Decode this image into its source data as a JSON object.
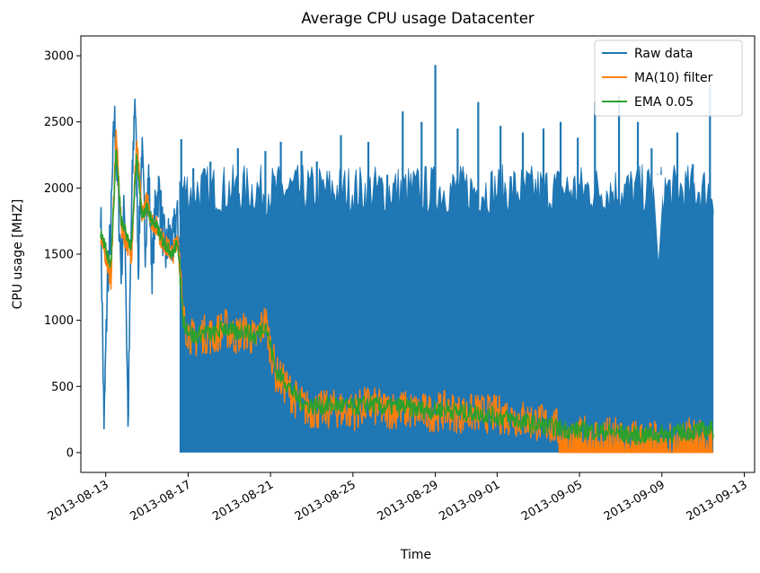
{
  "chart_data": {
    "type": "line",
    "title": "Average CPU usage Datacenter",
    "xlabel": "Time",
    "ylabel": "CPU usage [MHZ]",
    "xlim": [
      "2013-08-11T19:00",
      "2013-09-13T12:00"
    ],
    "ylim": [
      -150,
      3150
    ],
    "x_ticks": [
      "2013-08-13",
      "2013-08-17",
      "2013-08-21",
      "2013-08-25",
      "2013-08-29",
      "2013-09-01",
      "2013-09-05",
      "2013-09-09",
      "2013-09-13"
    ],
    "y_ticks": [
      0,
      500,
      1000,
      1500,
      2000,
      2500,
      3000
    ],
    "legend_position": "top-right",
    "grid": false,
    "series": [
      {
        "name": "Raw data",
        "color": "#1f77b4",
        "x": [
          "2013-08-12T18:00",
          "2013-08-12T22:00",
          "2013-08-13T02:00",
          "2013-08-13T06:00",
          "2013-08-13T10:00",
          "2013-08-13T14:00",
          "2013-08-13T18:00",
          "2013-08-13T22:00",
          "2013-08-14T02:00",
          "2013-08-14T06:00",
          "2013-08-14T10:00",
          "2013-08-14T14:00",
          "2013-08-14T18:00",
          "2013-08-14T22:00",
          "2013-08-15T02:00",
          "2013-08-15T06:00",
          "2013-08-15T10:00",
          "2013-08-15T14:00",
          "2013-08-15T18:00",
          "2013-08-15T22:00",
          "2013-08-16T02:00",
          "2013-08-16T06:00",
          "2013-08-16T10:00",
          "2013-08-16T14:00"
        ],
        "values": [
          1900,
          180,
          1300,
          1700,
          2550,
          2000,
          1400,
          1900,
          200,
          1800,
          2740,
          1450,
          2300,
          1600,
          2100,
          1400,
          1850,
          2000,
          1700,
          1500,
          1650,
          1550,
          1800,
          1600
        ],
        "band": {
          "start": "2013-08-16T14:00",
          "end": "2013-09-11T12:00",
          "min": 0,
          "typical_max": 1800,
          "peaks": [
            {
              "x": "2013-08-16T16:00",
              "value": 2370
            },
            {
              "x": "2013-08-17T06:00",
              "value": 2150
            },
            {
              "x": "2013-08-18T02:00",
              "value": 2200
            },
            {
              "x": "2013-08-19T10:00",
              "value": 2300
            },
            {
              "x": "2013-08-20T18:00",
              "value": 2280
            },
            {
              "x": "2013-08-21T12:00",
              "value": 2350
            },
            {
              "x": "2013-08-22T12:00",
              "value": 2280
            },
            {
              "x": "2013-08-23T06:00",
              "value": 2200
            },
            {
              "x": "2013-08-24T10:00",
              "value": 2400
            },
            {
              "x": "2013-08-25T18:00",
              "value": 2350
            },
            {
              "x": "2013-08-26T16:00",
              "value": 2100
            },
            {
              "x": "2013-08-27T10:00",
              "value": 2580
            },
            {
              "x": "2013-08-28T08:00",
              "value": 2500
            },
            {
              "x": "2013-08-29T00:00",
              "value": 2930
            },
            {
              "x": "2013-08-30T02:00",
              "value": 2450
            },
            {
              "x": "2013-08-31T02:00",
              "value": 2650
            },
            {
              "x": "2013-09-01T04:00",
              "value": 2470
            },
            {
              "x": "2013-09-02T06:00",
              "value": 2420
            },
            {
              "x": "2013-09-03T06:00",
              "value": 2450
            },
            {
              "x": "2013-09-04T02:00",
              "value": 2500
            },
            {
              "x": "2013-09-04T22:00",
              "value": 2380
            },
            {
              "x": "2013-09-05T18:00",
              "value": 2650
            },
            {
              "x": "2013-09-06T22:00",
              "value": 2700
            },
            {
              "x": "2013-09-07T20:00",
              "value": 2500
            },
            {
              "x": "2013-09-08T12:00",
              "value": 2300
            },
            {
              "x": "2013-09-09T18:00",
              "value": 2420
            },
            {
              "x": "2013-09-10T12:00",
              "value": 2180
            },
            {
              "x": "2013-09-11T08:00",
              "value": 2780
            }
          ],
          "dips": [
            {
              "x": "2013-09-08T20:00",
              "value": 1450
            }
          ]
        }
      },
      {
        "name": "MA(10) filter",
        "color": "#ff7f0e",
        "x": [
          "2013-08-12T18:00",
          "2013-08-13T00:00",
          "2013-08-13T06:00",
          "2013-08-13T12:00",
          "2013-08-13T18:00",
          "2013-08-14T00:00",
          "2013-08-14T06:00",
          "2013-08-14T12:00",
          "2013-08-14T18:00",
          "2013-08-15T00:00",
          "2013-08-15T06:00",
          "2013-08-15T12:00",
          "2013-08-15T18:00",
          "2013-08-16T00:00",
          "2013-08-16T06:00",
          "2013-08-16T12:00",
          "2013-08-16T18:00",
          "2013-08-17T06:00",
          "2013-08-17T18:00",
          "2013-08-18T06:00",
          "2013-08-18T18:00",
          "2013-08-19T06:00",
          "2013-08-19T18:00",
          "2013-08-20T06:00",
          "2013-08-20T18:00",
          "2013-08-21T06:00",
          "2013-08-21T18:00",
          "2013-08-22T06:00",
          "2013-08-22T18:00",
          "2013-08-23T12:00",
          "2013-08-24T06:00",
          "2013-08-25T00:00",
          "2013-08-25T18:00",
          "2013-08-26T12:00",
          "2013-08-27T06:00",
          "2013-08-28T00:00",
          "2013-08-28T18:00",
          "2013-08-29T12:00",
          "2013-08-30T06:00",
          "2013-08-31T00:00",
          "2013-08-31T18:00",
          "2013-09-01T12:00",
          "2013-09-02T06:00",
          "2013-09-03T00:00",
          "2013-09-03T18:00",
          "2013-09-04T12:00",
          "2013-09-05T06:00",
          "2013-09-06T00:00",
          "2013-09-06T18:00",
          "2013-09-07T12:00",
          "2013-09-08T06:00",
          "2013-09-09T00:00",
          "2013-09-09T18:00",
          "2013-09-10T12:00",
          "2013-09-11T06:00"
        ],
        "values": [
          1600,
          1500,
          1300,
          2400,
          1700,
          1600,
          1500,
          2350,
          1800,
          1900,
          1750,
          1700,
          1600,
          1550,
          1500,
          1650,
          1000,
          850,
          900,
          880,
          950,
          880,
          920,
          850,
          1000,
          600,
          500,
          400,
          330,
          320,
          330,
          310,
          360,
          320,
          330,
          310,
          300,
          320,
          290,
          300,
          290,
          280,
          250,
          230,
          200,
          120,
          130,
          130,
          120,
          110,
          100,
          100,
          110,
          120,
          130
        ],
        "band": {
          "start": "2013-08-16T14:00",
          "end": "2013-09-11T12:00",
          "spread": 150,
          "floor_from": "2013-09-04T00:00",
          "floor": 0
        }
      },
      {
        "name": "EMA 0.05",
        "color": "#2ca02c",
        "x": [
          "2013-08-12T18:00",
          "2013-08-13T00:00",
          "2013-08-13T06:00",
          "2013-08-13T12:00",
          "2013-08-13T18:00",
          "2013-08-14T00:00",
          "2013-08-14T06:00",
          "2013-08-14T12:00",
          "2013-08-14T18:00",
          "2013-08-15T00:00",
          "2013-08-15T06:00",
          "2013-08-15T12:00",
          "2013-08-15T18:00",
          "2013-08-16T00:00",
          "2013-08-16T06:00",
          "2013-08-16T12:00",
          "2013-08-16T18:00",
          "2013-08-17T06:00",
          "2013-08-17T18:00",
          "2013-08-18T06:00",
          "2013-08-18T18:00",
          "2013-08-19T06:00",
          "2013-08-19T18:00",
          "2013-08-20T06:00",
          "2013-08-20T18:00",
          "2013-08-21T06:00",
          "2013-08-21T18:00",
          "2013-08-22T06:00",
          "2013-08-22T18:00",
          "2013-08-23T12:00",
          "2013-08-24T06:00",
          "2013-08-25T00:00",
          "2013-08-25T18:00",
          "2013-08-26T12:00",
          "2013-08-27T06:00",
          "2013-08-28T00:00",
          "2013-08-28T18:00",
          "2013-08-29T12:00",
          "2013-08-30T06:00",
          "2013-08-31T00:00",
          "2013-08-31T18:00",
          "2013-09-01T12:00",
          "2013-09-02T06:00",
          "2013-09-03T00:00",
          "2013-09-03T18:00",
          "2013-09-04T12:00",
          "2013-09-05T06:00",
          "2013-09-06T00:00",
          "2013-09-06T18:00",
          "2013-09-07T12:00",
          "2013-09-08T06:00",
          "2013-09-09T00:00",
          "2013-09-09T18:00",
          "2013-09-10T12:00",
          "2013-09-11T06:00"
        ],
        "values": [
          1650,
          1550,
          1400,
          2300,
          1750,
          1650,
          1550,
          2250,
          1800,
          1850,
          1750,
          1700,
          1600,
          1550,
          1500,
          1600,
          1000,
          870,
          910,
          890,
          950,
          900,
          930,
          870,
          980,
          620,
          530,
          420,
          360,
          350,
          360,
          340,
          370,
          340,
          350,
          330,
          320,
          330,
          300,
          300,
          280,
          260,
          230,
          210,
          190,
          170,
          170,
          160,
          150,
          130,
          130,
          140,
          150,
          160,
          170
        ],
        "band": {
          "start": "2013-08-16T14:00",
          "end": "2013-09-11T12:00",
          "spread": 70
        }
      }
    ]
  }
}
